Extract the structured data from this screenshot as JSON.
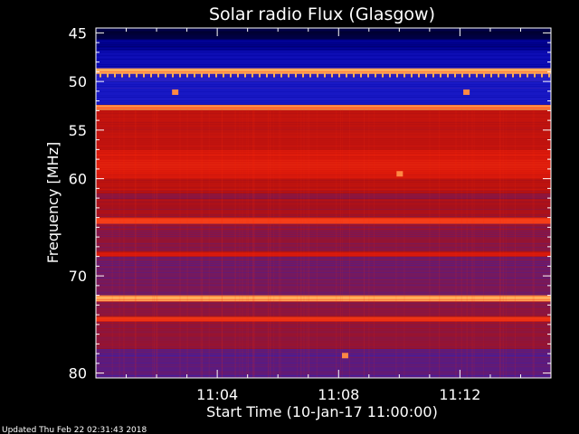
{
  "chart_data": {
    "type": "heatmap",
    "title": "Solar radio Flux (Glasgow)",
    "xlabel": "Start Time (10-Jan-17 11:00:00)",
    "ylabel": "Frequency [MHz]",
    "x_unit": "minutes after 11:00:00",
    "xlim": [
      0,
      15
    ],
    "ylim": [
      44.5,
      80.5
    ],
    "y_ticks": [
      45,
      50,
      55,
      60,
      70,
      80
    ],
    "x_ticks": [
      {
        "minute": 4,
        "label": "11:04"
      },
      {
        "minute": 8,
        "label": "11:08"
      },
      {
        "minute": 12,
        "label": "11:12"
      }
    ],
    "colormap": [
      "#000010",
      "#0000a0",
      "#2020d0",
      "#6a1a6a",
      "#b01010",
      "#e01a0a",
      "#ff5020",
      "#ffd070"
    ],
    "bands": [
      {
        "f_start": 44.5,
        "f_end": 45.6,
        "level": 0.05
      },
      {
        "f_start": 45.6,
        "f_end": 46.8,
        "level": 0.12
      },
      {
        "f_start": 46.8,
        "f_end": 48.6,
        "level": 0.2
      },
      {
        "f_start": 48.6,
        "f_end": 49.2,
        "level": 0.95
      },
      {
        "f_start": 49.2,
        "f_end": 50.0,
        "level": 0.3
      },
      {
        "f_start": 50.0,
        "f_end": 52.4,
        "level": 0.25
      },
      {
        "f_start": 52.4,
        "f_end": 52.9,
        "level": 0.9
      },
      {
        "f_start": 52.9,
        "f_end": 57.0,
        "level": 0.62
      },
      {
        "f_start": 57.0,
        "f_end": 60.0,
        "level": 0.7
      },
      {
        "f_start": 60.0,
        "f_end": 61.5,
        "level": 0.6
      },
      {
        "f_start": 61.5,
        "f_end": 62.0,
        "level": 0.5
      },
      {
        "f_start": 62.0,
        "f_end": 64.0,
        "level": 0.55
      },
      {
        "f_start": 64.0,
        "f_end": 64.6,
        "level": 0.8
      },
      {
        "f_start": 64.6,
        "f_end": 67.5,
        "level": 0.5
      },
      {
        "f_start": 67.5,
        "f_end": 68.0,
        "level": 0.7
      },
      {
        "f_start": 68.0,
        "f_end": 72.0,
        "level": 0.45
      },
      {
        "f_start": 72.0,
        "f_end": 72.6,
        "level": 0.95
      },
      {
        "f_start": 72.6,
        "f_end": 74.2,
        "level": 0.5
      },
      {
        "f_start": 74.2,
        "f_end": 74.7,
        "level": 0.78
      },
      {
        "f_start": 74.7,
        "f_end": 77.5,
        "level": 0.5
      },
      {
        "f_start": 77.5,
        "f_end": 80.5,
        "level": 0.4
      }
    ],
    "hotspots": [
      {
        "minute": 2.6,
        "freq": 51.1
      },
      {
        "minute": 12.2,
        "freq": 51.1
      },
      {
        "minute": 10.0,
        "freq": 59.5
      },
      {
        "minute": 8.2,
        "freq": 78.2
      }
    ]
  },
  "footer": {
    "updated": "Updated Thu Feb 22 02:31:43 2018"
  }
}
